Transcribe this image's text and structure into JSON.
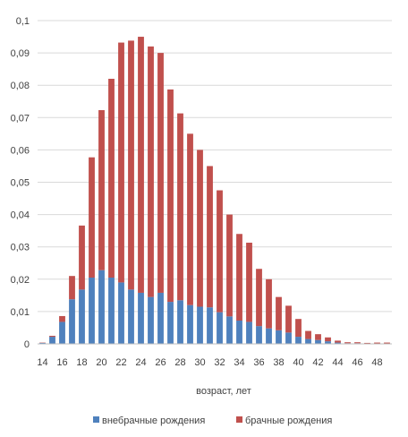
{
  "chart_data": {
    "type": "bar",
    "stacked": true,
    "xlabel": "возраст, лет",
    "ylabel": "",
    "title": "",
    "ylim": [
      0,
      0.1
    ],
    "yticks": [
      "0",
      "0,01",
      "0,02",
      "0,03",
      "0,04",
      "0,05",
      "0,06",
      "0,07",
      "0,08",
      "0,09",
      "0,1"
    ],
    "grid": true,
    "legend_position": "bottom",
    "categories": [
      14,
      15,
      16,
      17,
      18,
      19,
      20,
      21,
      22,
      23,
      24,
      25,
      26,
      27,
      28,
      29,
      30,
      31,
      32,
      33,
      34,
      35,
      36,
      37,
      38,
      39,
      40,
      41,
      42,
      43,
      44,
      45,
      46,
      47,
      48,
      49
    ],
    "xtick_labels": [
      "14",
      "16",
      "18",
      "20",
      "22",
      "24",
      "26",
      "28",
      "30",
      "32",
      "34",
      "36",
      "38",
      "40",
      "42",
      "44",
      "46",
      "48"
    ],
    "series": [
      {
        "name": "внебрачные рождения",
        "color": "#4F81BD",
        "values": [
          0.0003,
          0.0022,
          0.0068,
          0.0138,
          0.0168,
          0.0205,
          0.0228,
          0.0205,
          0.019,
          0.0168,
          0.0158,
          0.0145,
          0.0158,
          0.013,
          0.0135,
          0.012,
          0.0115,
          0.0113,
          0.0098,
          0.0085,
          0.0072,
          0.0068,
          0.0055,
          0.0048,
          0.0042,
          0.0035,
          0.0022,
          0.0015,
          0.0012,
          0.0008,
          0.0004,
          0.0002,
          0.0002,
          0.0001,
          0.0001,
          0.0001
        ]
      },
      {
        "name": "брачные рождения",
        "color": "#C0504D",
        "values": [
          0.0001,
          0.0003,
          0.0018,
          0.0072,
          0.0198,
          0.0372,
          0.0495,
          0.0615,
          0.0742,
          0.077,
          0.0792,
          0.0775,
          0.0742,
          0.0657,
          0.0578,
          0.053,
          0.0485,
          0.0437,
          0.0377,
          0.0315,
          0.0268,
          0.0245,
          0.0177,
          0.0152,
          0.0103,
          0.0083,
          0.0055,
          0.0025,
          0.0018,
          0.0012,
          0.0006,
          0.0003,
          0.0003,
          0.0002,
          0.0003,
          0.0003
        ]
      }
    ]
  }
}
